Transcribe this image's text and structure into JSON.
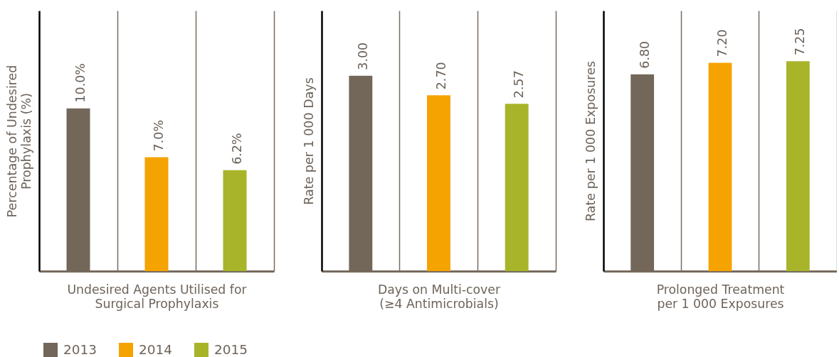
{
  "chart_data": [
    {
      "type": "bar",
      "categories": [
        null,
        null,
        null
      ],
      "stacked": true,
      "series": [
        {
          "name": "2013",
          "color": "#73675a",
          "values": [
            10.0,
            null,
            null
          ],
          "value_labels": [
            "10.0%",
            null,
            null
          ]
        },
        {
          "name": "2014",
          "color": "#f5a300",
          "values": [
            null,
            7.0,
            null
          ],
          "value_labels": [
            null,
            "7.0%",
            null
          ]
        },
        {
          "name": "2015",
          "color": "#a8b42a",
          "values": [
            null,
            null,
            6.2
          ],
          "value_labels": [
            null,
            null,
            "6.2%"
          ]
        }
      ],
      "xlabel": "Undesired Agents Utilised for Surgical Prophylaxis",
      "ylabel": "Percentage of Undesired Prophylaxis (%)",
      "ylim": [
        0,
        16
      ],
      "grid": "x",
      "tick_labels": false,
      "legend": "bottom left"
    },
    {
      "type": "bar",
      "categories": [
        null,
        null,
        null
      ],
      "stacked": true,
      "series": [
        {
          "color": "#73675a",
          "values": [
            3.0,
            null,
            null
          ],
          "value_labels": [
            "3.00",
            null,
            null
          ]
        },
        {
          "color": "#f5a300",
          "values": [
            null,
            2.7,
            null
          ],
          "value_labels": [
            null,
            "2.70",
            null
          ]
        },
        {
          "color": "#a8b42a",
          "values": [
            null,
            null,
            2.57
          ],
          "value_labels": [
            null,
            null,
            "2.57"
          ]
        }
      ],
      "xlabel": "Days on Multi-cover (≥4 Antimicrobials)",
      "ylabel": "Rate per 1 000 Days",
      "ylim": [
        0,
        4
      ],
      "grid": "x",
      "tick_labels": false
    },
    {
      "type": "bar",
      "categories": [
        null,
        null,
        null
      ],
      "stacked": true,
      "series": [
        {
          "color": "#73675a",
          "values": [
            6.8,
            null,
            null
          ],
          "value_labels": [
            "6.80",
            null,
            null
          ]
        },
        {
          "color": "#f5a300",
          "values": [
            null,
            7.2,
            null
          ],
          "value_labels": [
            null,
            "7.20",
            null
          ]
        },
        {
          "color": "#a8b42a",
          "values": [
            null,
            null,
            7.25
          ],
          "value_labels": [
            null,
            null,
            "7.25"
          ]
        }
      ],
      "xlabel": "Prolonged Treatment per 1 000 Exposures",
      "ylabel": "Rate per 1 000 Exposures",
      "ylim": [
        0,
        9
      ],
      "grid": "x",
      "tick_labels": false
    }
  ]
}
